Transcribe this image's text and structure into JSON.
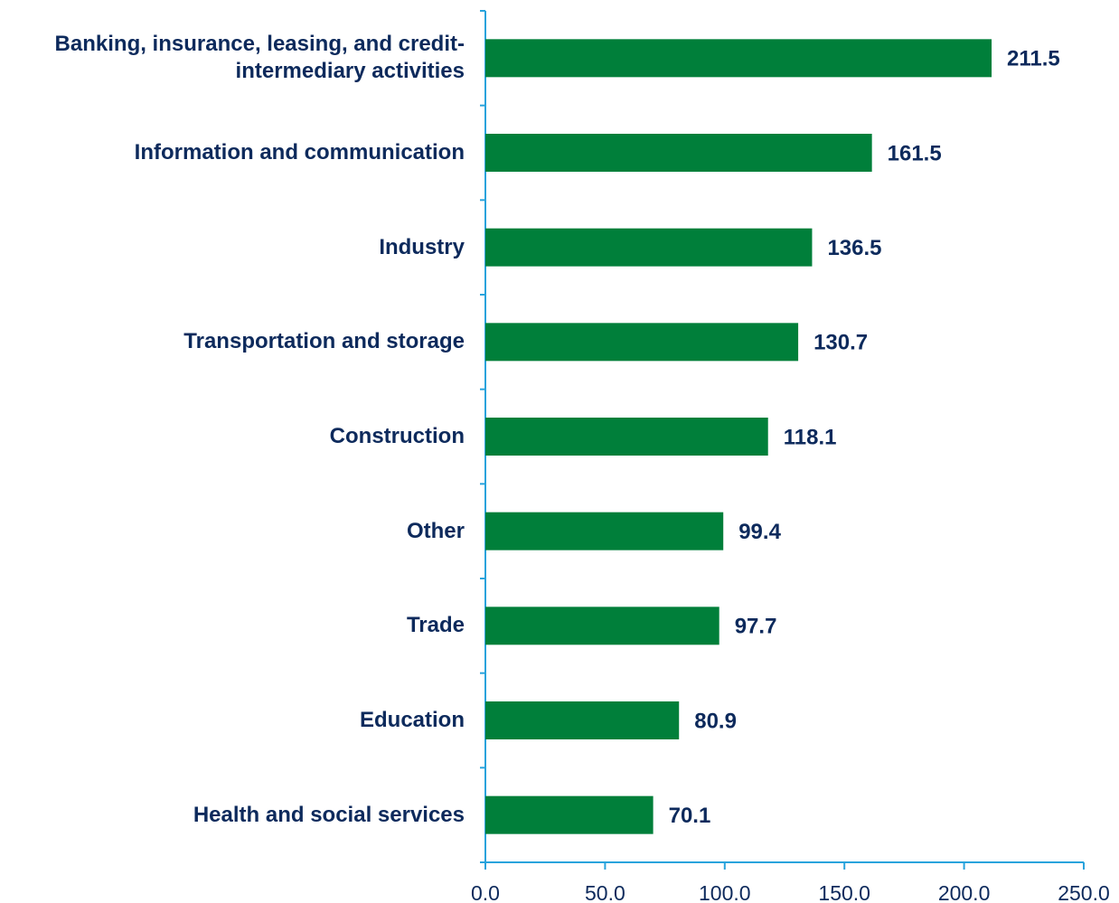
{
  "chart_data": {
    "type": "bar",
    "orientation": "horizontal",
    "categories": [
      "Banking, insurance, leasing, and credit-intermediary activities",
      "Information and communication",
      "Industry",
      "Transportation and storage",
      "Construction",
      "Other",
      "Trade",
      "Education",
      "Health and social services"
    ],
    "values": [
      211.5,
      161.5,
      136.5,
      130.7,
      118.1,
      99.4,
      97.7,
      80.9,
      70.1
    ],
    "color": "#007f3a",
    "xlim": [
      0,
      250
    ],
    "xticks": [
      {
        "value": 0,
        "label": "0.0"
      },
      {
        "value": 50,
        "label": "50.0"
      },
      {
        "value": 100,
        "label": "100.0"
      },
      {
        "value": 150,
        "label": "150.0"
      },
      {
        "value": 200,
        "label": "200.0"
      },
      {
        "value": 250,
        "label": "250.0"
      }
    ]
  }
}
